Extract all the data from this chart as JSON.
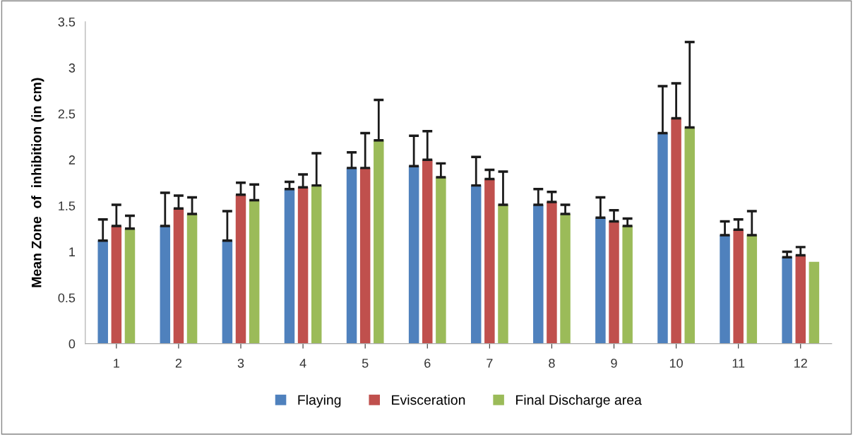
{
  "chart_data": {
    "type": "bar",
    "ylabel": "Mean Zone  of  inhibition (in cm)",
    "categories": [
      "1",
      "2",
      "3",
      "4",
      "5",
      "6",
      "7",
      "8",
      "9",
      "10",
      "11",
      "12"
    ],
    "series": [
      {
        "name": "Flaying",
        "color": "#4f81bd",
        "values": [
          1.12,
          1.28,
          1.12,
          1.68,
          1.91,
          1.93,
          1.72,
          1.51,
          1.37,
          2.29,
          1.18,
          0.94
        ],
        "errors": [
          [
            1.12,
            1.35
          ],
          [
            1.28,
            1.64
          ],
          [
            1.12,
            1.44
          ],
          [
            1.68,
            1.76
          ],
          [
            1.91,
            2.08
          ],
          [
            1.93,
            2.26
          ],
          [
            1.72,
            2.03
          ],
          [
            1.51,
            1.68
          ],
          [
            1.37,
            1.59
          ],
          [
            2.29,
            2.8
          ],
          [
            1.18,
            1.33
          ],
          [
            0.94,
            1.0
          ]
        ]
      },
      {
        "name": "Evisceration",
        "color": "#c0504d",
        "values": [
          1.28,
          1.47,
          1.62,
          1.7,
          1.91,
          2.0,
          1.79,
          1.54,
          1.33,
          2.45,
          1.24,
          0.96
        ],
        "errors": [
          [
            1.28,
            1.51
          ],
          [
            1.47,
            1.61
          ],
          [
            1.62,
            1.75
          ],
          [
            1.7,
            1.84
          ],
          [
            1.91,
            2.29
          ],
          [
            2.0,
            2.31
          ],
          [
            1.79,
            1.89
          ],
          [
            1.54,
            1.65
          ],
          [
            1.33,
            1.45
          ],
          [
            2.45,
            2.83
          ],
          [
            1.24,
            1.35
          ],
          [
            0.96,
            1.05
          ]
        ]
      },
      {
        "name": "Final Discharge area",
        "color": "#9bbb59",
        "values": [
          1.25,
          1.41,
          1.56,
          1.72,
          2.21,
          1.81,
          1.51,
          1.41,
          1.28,
          2.35,
          1.18,
          0.89
        ],
        "errors": [
          [
            1.25,
            1.39
          ],
          [
            1.41,
            1.59
          ],
          [
            1.56,
            1.73
          ],
          [
            1.72,
            2.07
          ],
          [
            2.21,
            2.65
          ],
          [
            1.81,
            1.96
          ],
          [
            1.51,
            1.87
          ],
          [
            1.41,
            1.51
          ],
          [
            1.28,
            1.36
          ],
          [
            2.35,
            3.28
          ],
          [
            1.18,
            1.44
          ],
          null
        ]
      }
    ],
    "ylim": [
      0,
      3.5
    ],
    "yticks": [
      0,
      0.5,
      1,
      1.5,
      2,
      2.5,
      3,
      3.5
    ],
    "grid": false,
    "legend": "bottom"
  }
}
